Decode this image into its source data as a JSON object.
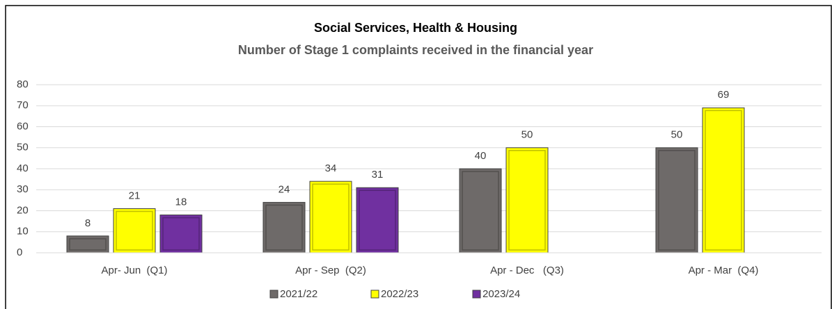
{
  "chart_data": {
    "type": "bar",
    "title": "Social Services, Health & Housing",
    "subtitle": "Number of Stage 1 complaints received in the financial year",
    "categories": [
      "Apr- Jun  (Q1)",
      "Apr - Sep  (Q2)",
      "Apr - Dec   (Q3)",
      "Apr - Mar  (Q4)"
    ],
    "series": [
      {
        "name": "2021/22",
        "color": "#6e6a69",
        "values": [
          8,
          24,
          40,
          50
        ]
      },
      {
        "name": "2022/23",
        "color": "#ffff00",
        "values": [
          21,
          34,
          50,
          69
        ]
      },
      {
        "name": "2023/24",
        "color": "#7030a0",
        "values": [
          18,
          31,
          null,
          null
        ]
      }
    ],
    "ylim": [
      0,
      80
    ],
    "yticks": [
      0,
      10,
      20,
      30,
      40,
      50,
      60,
      70,
      80
    ],
    "grid": true,
    "legend": "bottom"
  }
}
